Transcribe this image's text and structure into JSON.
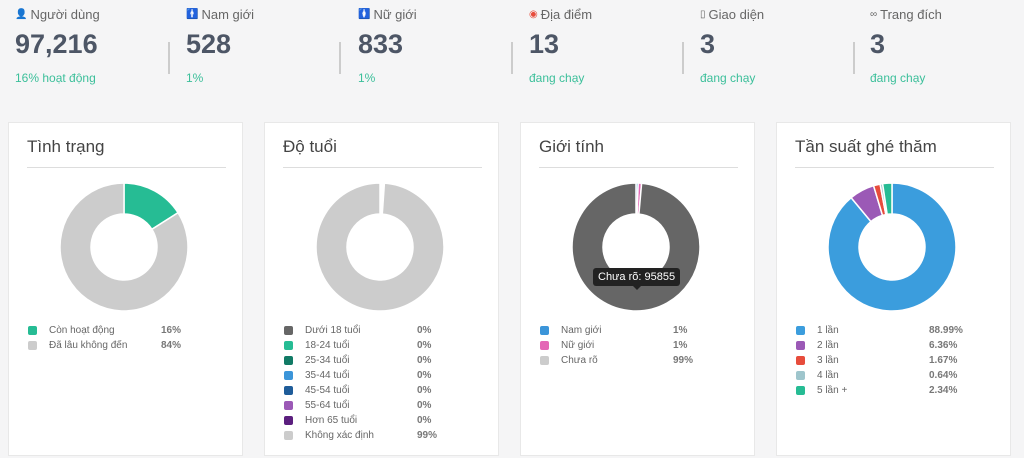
{
  "stats": [
    {
      "label": "Người dùng",
      "value": "97,216",
      "sub": "16% hoạt động",
      "icon": "user-icon",
      "icon_color": "#555"
    },
    {
      "label": "Nam giới",
      "value": "528",
      "sub": "1%",
      "icon": "male-icon",
      "icon_color": "#3498db"
    },
    {
      "label": "Nữ giới",
      "value": "833",
      "sub": "1%",
      "icon": "female-icon",
      "icon_color": "#e466b6"
    },
    {
      "label": "Địa điểm",
      "value": "13",
      "sub": "đang chạy",
      "icon": "map-marker-icon",
      "icon_color": "#e74c3c"
    },
    {
      "label": "Giao diện",
      "value": "3",
      "sub": "đang chạy",
      "icon": "mobile-icon",
      "icon_color": "#666"
    },
    {
      "label": "Trang đích",
      "value": "3",
      "sub": "đang chạy",
      "icon": "link-icon",
      "icon_color": "#666"
    }
  ],
  "chart_data": [
    {
      "type": "pie",
      "title": "Tình trạng",
      "categories": [
        "Còn hoạt động",
        "Đã lâu không đến"
      ],
      "values": [
        16,
        84
      ],
      "labels": [
        "16%",
        "84%"
      ],
      "colors": [
        "#26bc94",
        "#cccccc"
      ]
    },
    {
      "type": "pie",
      "title": "Độ tuổi",
      "categories": [
        "Dưới 18 tuổi",
        "18-24 tuổi",
        "25-34 tuổi",
        "35-44 tuổi",
        "45-54 tuổi",
        "55-64 tuổi",
        "Hơn 65 tuổi",
        "Không xác định"
      ],
      "values": [
        0.2,
        0.2,
        0.2,
        0.2,
        0.1,
        0.1,
        0.1,
        99
      ],
      "labels": [
        "0%",
        "0%",
        "0%",
        "0%",
        "0%",
        "0%",
        "0%",
        "99%"
      ],
      "colors": [
        "#666666",
        "#26bc94",
        "#117a65",
        "#3b95d9",
        "#1f5c99",
        "#9b59b6",
        "#5b1f7e",
        "#cccccc"
      ]
    },
    {
      "type": "pie",
      "title": "Giới tính",
      "categories": [
        "Nam giới",
        "Nữ giới",
        "Chưa rõ"
      ],
      "values": [
        528,
        833,
        95855
      ],
      "labels": [
        "1%",
        "1%",
        "99%"
      ],
      "colors": [
        "#3b95d9",
        "#e466b6",
        "#cccccc"
      ],
      "highlight_color": "#666666",
      "tooltip": "Chưa rõ: 95855"
    },
    {
      "type": "pie",
      "title": "Tần suất ghé thăm",
      "categories": [
        "1 lần",
        "2 lần",
        "3 lần",
        "4 lần",
        "5 lần +"
      ],
      "values": [
        88.99,
        6.36,
        1.67,
        0.64,
        2.34
      ],
      "labels": [
        "88.99%",
        "6.36%",
        "1.67%",
        "0.64%",
        "2.34%"
      ],
      "colors": [
        "#3b9ddd",
        "#9b59b6",
        "#e74c3c",
        "#9ec5cc",
        "#26bc94"
      ]
    }
  ]
}
